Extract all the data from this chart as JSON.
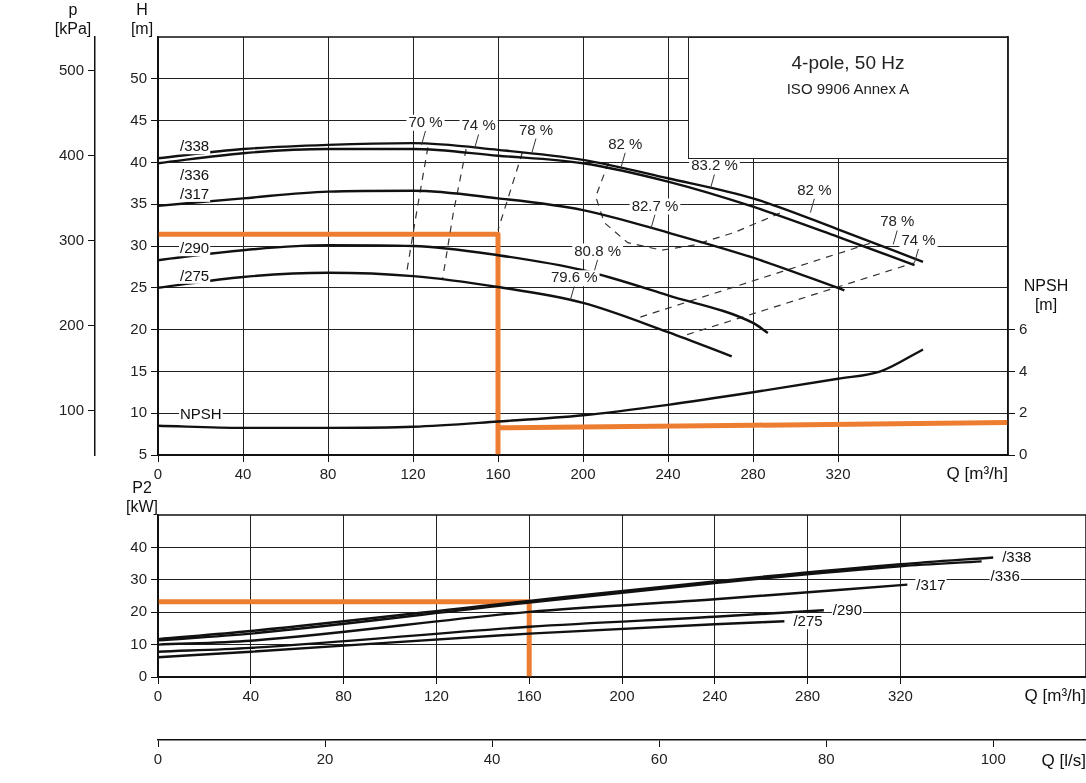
{
  "chart_data": [
    {
      "type": "line",
      "title": "4-pole, 50 Hz",
      "subtitle": "ISO 9906 Annex A",
      "xlabel": "Q [m³/h]",
      "ylabel": "H [m]",
      "y2label": "NPSH [m]",
      "y3label": "p [kPa]",
      "xlim": [
        0,
        400
      ],
      "xticks": [
        0,
        40,
        80,
        120,
        160,
        200,
        240,
        280,
        320
      ],
      "ylim": [
        5,
        55
      ],
      "yticks": [
        5,
        10,
        15,
        20,
        25,
        30,
        35,
        40,
        45,
        50
      ],
      "y2lim": [
        0,
        20
      ],
      "y2ticks": [
        0,
        2,
        4,
        6
      ],
      "y3lim": [
        48,
        540
      ],
      "y3ticks": [
        100,
        200,
        300,
        400,
        500
      ],
      "grid": true,
      "marker": "none",
      "series": [
        {
          "name": "/338",
          "color": "#111111",
          "x": [
            0,
            40,
            80,
            120,
            160,
            200,
            240,
            280,
            320,
            360
          ],
          "values": [
            40.5,
            41.6,
            42.1,
            42.3,
            41.5,
            40.3,
            38.1,
            35.7,
            32,
            28.1
          ]
        },
        {
          "name": "/336",
          "color": "#111111",
          "x": [
            0,
            40,
            80,
            120,
            160,
            200,
            240,
            280,
            320,
            356
          ],
          "values": [
            39.9,
            41.1,
            41.6,
            41.6,
            40.8,
            39.9,
            37.7,
            34.7,
            31.1,
            27.7
          ]
        },
        {
          "name": "/317",
          "color": "#111111",
          "x": [
            0,
            40,
            80,
            120,
            160,
            200,
            240,
            280,
            323
          ],
          "values": [
            34.8,
            35.7,
            36.5,
            36.6,
            35.7,
            34.3,
            31.6,
            28.6,
            24.7
          ]
        },
        {
          "name": "/290",
          "color": "#111111",
          "x": [
            0,
            40,
            80,
            120,
            160,
            200,
            240,
            280,
            287
          ],
          "values": [
            28.3,
            29.5,
            30.1,
            30,
            28.9,
            27.1,
            24.1,
            20.8,
            19.6
          ]
        },
        {
          "name": "/275",
          "color": "#111111",
          "x": [
            0,
            40,
            80,
            120,
            160,
            200,
            240,
            270
          ],
          "values": [
            25,
            26.3,
            26.8,
            26.4,
            25.1,
            23.2,
            19.7,
            16.8
          ]
        },
        {
          "name": "NPSH",
          "color": "#111111",
          "axis": "y2",
          "x": [
            0,
            40,
            80,
            120,
            160,
            200,
            240,
            280,
            320,
            340,
            360
          ],
          "values": [
            1.4,
            1.3,
            1.3,
            1.35,
            1.6,
            1.9,
            2.4,
            3.0,
            3.65,
            4.0,
            5.05
          ]
        },
        {
          "color": "#333333",
          "line_style": "dashed",
          "x": [
            127,
            121,
            117
          ],
          "values": [
            41.8,
            33,
            26.8
          ]
        },
        {
          "color": "#333333",
          "line_style": "dashed",
          "x": [
            145,
            139,
            134
          ],
          "values": [
            41.6,
            34,
            26.2
          ]
        },
        {
          "color": "#333333",
          "line_style": "dashed",
          "x": [
            171.5,
            160
          ],
          "values": [
            41.2,
            31.9
          ]
        },
        {
          "color": "#333333",
          "line_style": "dashed",
          "x": [
            212,
            206,
            210,
            221,
            237,
            252,
            271,
            285,
            295
          ],
          "values": [
            40,
            35.9,
            32.8,
            30.4,
            29.5,
            30.1,
            31.6,
            33.1,
            34.2
          ]
        },
        {
          "color": "#333333",
          "line_style": "dashed",
          "x": [
            227,
            336
          ],
          "values": [
            21.5,
            30.4
          ]
        },
        {
          "color": "#333333",
          "line_style": "dashed",
          "x": [
            249,
            356
          ],
          "values": [
            19.4,
            28
          ]
        },
        {
          "color": "#ed7d31",
          "x": [
            0,
            160,
            160
          ],
          "values": [
            31.4,
            31.4,
            5
          ]
        },
        {
          "color": "#ed7d31",
          "axis": "y2",
          "x": [
            160,
            400
          ],
          "values": [
            1.3,
            1.55
          ]
        }
      ],
      "annotations": [
        {
          "text": "70 %",
          "x": 124,
          "y": 42.1
        },
        {
          "text": "74 %",
          "x": 149,
          "y": 41.7
        },
        {
          "text": "78 %",
          "x": 176,
          "y": 41.2
        },
        {
          "text": "82 %",
          "x": 218,
          "y": 39.5
        },
        {
          "text": "83.2 %",
          "x": 260,
          "y": 36.9
        },
        {
          "text": "82.7 %",
          "x": 232,
          "y": 32.1
        },
        {
          "text": "82 %",
          "x": 307,
          "y": 34
        },
        {
          "text": "80.8 %",
          "x": 205,
          "y": 26.7
        },
        {
          "text": "79.6 %",
          "x": 194,
          "y": 23.5
        },
        {
          "text": "78 %",
          "x": 346,
          "y": 30.2
        },
        {
          "text": "74 %",
          "x": 356,
          "y": 28
        }
      ]
    },
    {
      "type": "line",
      "xlabel": "Q [m³/h]",
      "ylabel": "P2 [kW]",
      "x2label": "Q [l/s]",
      "xlim": [
        0,
        400
      ],
      "xticks": [
        0,
        40,
        80,
        120,
        160,
        200,
        240,
        280,
        320
      ],
      "ylim": [
        0,
        50
      ],
      "yticks": [
        0,
        10,
        20,
        30,
        40
      ],
      "x2lim": [
        0,
        111.1
      ],
      "x2ticks": [
        0,
        20,
        40,
        60,
        80,
        100
      ],
      "grid": true,
      "marker": "none",
      "series": [
        {
          "name": "/338",
          "color": "#111111",
          "x": [
            0,
            40,
            160,
            240,
            320,
            360
          ],
          "values": [
            11.7,
            14.2,
            23.5,
            29.5,
            34.8,
            36.9
          ]
        },
        {
          "name": "/336",
          "color": "#111111",
          "x": [
            0,
            40,
            160,
            240,
            320,
            355
          ],
          "values": [
            11.3,
            13.4,
            23,
            29,
            34.2,
            35.7
          ]
        },
        {
          "name": "/317",
          "color": "#111111",
          "x": [
            0,
            40,
            160,
            240,
            323
          ],
          "values": [
            10,
            11.2,
            20.1,
            24,
            28.5
          ]
        },
        {
          "name": "/290",
          "color": "#111111",
          "x": [
            0,
            40,
            160,
            240,
            287
          ],
          "values": [
            7.8,
            9,
            15.5,
            18.6,
            20.6
          ]
        },
        {
          "name": "/275",
          "color": "#111111",
          "x": [
            0,
            40,
            160,
            240,
            270
          ],
          "values": [
            6.1,
            7.8,
            13.4,
            16.3,
            17.2
          ]
        },
        {
          "color": "#ed7d31",
          "x": [
            0,
            160,
            160
          ],
          "values": [
            23.2,
            23.2,
            0
          ]
        }
      ]
    }
  ]
}
